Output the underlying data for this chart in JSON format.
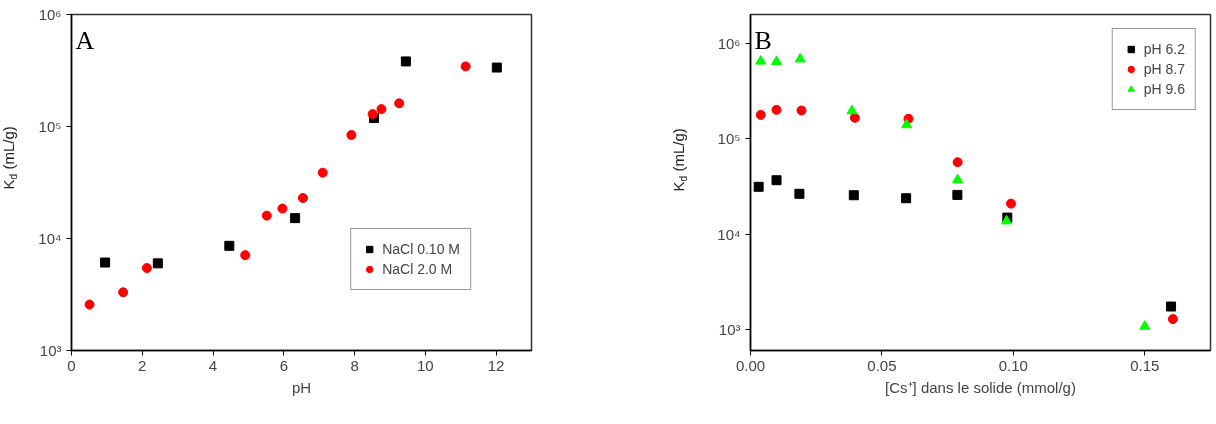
{
  "chart_data": [
    {
      "type": "scatter",
      "xlabel": "pH",
      "ylabel": "K$_{d}$ (mL/g)",
      "annotations": [
        "A"
      ],
      "log": "y",
      "xlim": [
        0,
        13
      ],
      "ylim": [
        1000,
        1000000
      ],
      "xticks": [
        0,
        2,
        4,
        6,
        8,
        10,
        12
      ],
      "yticks": [
        {
          "value": 1000,
          "label": "10³"
        },
        {
          "value": 10000,
          "label": "10⁴"
        },
        {
          "value": 100000,
          "label": "10⁵"
        },
        {
          "value": 1000000,
          "label": "10⁶"
        }
      ],
      "grid": false,
      "legend": "bottom right",
      "series": [
        {
          "name": "NaCl 0.10 M",
          "color": "#000000",
          "marker": "square",
          "x": [
            0.95,
            2.44,
            4.46,
            6.32,
            8.55,
            9.45,
            12.02
          ],
          "values": [
            6100,
            6000,
            8600,
            15200,
            119000,
            381000,
            336000
          ]
        },
        {
          "name": "NaCl 2.0 M",
          "color": "#ff0000",
          "marker": "circle",
          "x": [
            0.51,
            1.46,
            2.13,
            4.91,
            5.52,
            5.96,
            6.54,
            7.1,
            7.91,
            8.51,
            8.76,
            9.26,
            11.14
          ],
          "values": [
            2570,
            3310,
            5450,
            7100,
            16000,
            18500,
            23000,
            38700,
            84000,
            129000,
            143000,
            161000,
            344000
          ]
        }
      ]
    },
    {
      "type": "scatter",
      "xlabel": "[Cs⁺] dans le solide (mmol/g)",
      "ylabel": "K$_{d}$ (mL/g)",
      "annotations": [
        "B"
      ],
      "log": "y",
      "xlim": [
        0,
        0.175
      ],
      "ylim": [
        610,
        2000000
      ],
      "xticks": [
        {
          "value": 0,
          "label": "0.00"
        },
        {
          "value": 0.05,
          "label": "0.05"
        },
        {
          "value": 0.1,
          "label": "0.10"
        },
        {
          "value": 0.15,
          "label": "0.15"
        }
      ],
      "yticks": [
        {
          "value": 1000,
          "label": "10³"
        },
        {
          "value": 10000,
          "label": "10⁴"
        },
        {
          "value": 100000,
          "label": "10⁵"
        },
        {
          "value": 1000000,
          "label": "10⁶"
        }
      ],
      "grid": false,
      "legend": "top right",
      "series": [
        {
          "name": "pH 6.2",
          "color": "#000000",
          "marker": "square",
          "x": [
            0.0031,
            0.0099,
            0.0186,
            0.0393,
            0.0592,
            0.0787,
            0.0977,
            0.16
          ],
          "values": [
            31500,
            36900,
            26600,
            25700,
            23900,
            25900,
            15000,
            1760
          ]
        },
        {
          "name": "pH 8.7",
          "color": "#ff0000",
          "marker": "circle",
          "x": [
            0.0039,
            0.0099,
            0.0194,
            0.0397,
            0.0601,
            0.0788,
            0.0991,
            0.1607
          ],
          "values": [
            178000,
            201000,
            198000,
            166000,
            162000,
            57000,
            21000,
            1300
          ]
        },
        {
          "name": "pH 9.6",
          "color": "#00ff00",
          "marker": "triangle",
          "x": [
            0.0039,
            0.0099,
            0.0189,
            0.0386,
            0.0594,
            0.0788,
            0.0974,
            0.15
          ],
          "values": [
            649000,
            643000,
            684000,
            196000,
            140000,
            37200,
            13800,
            1090
          ]
        }
      ]
    }
  ]
}
